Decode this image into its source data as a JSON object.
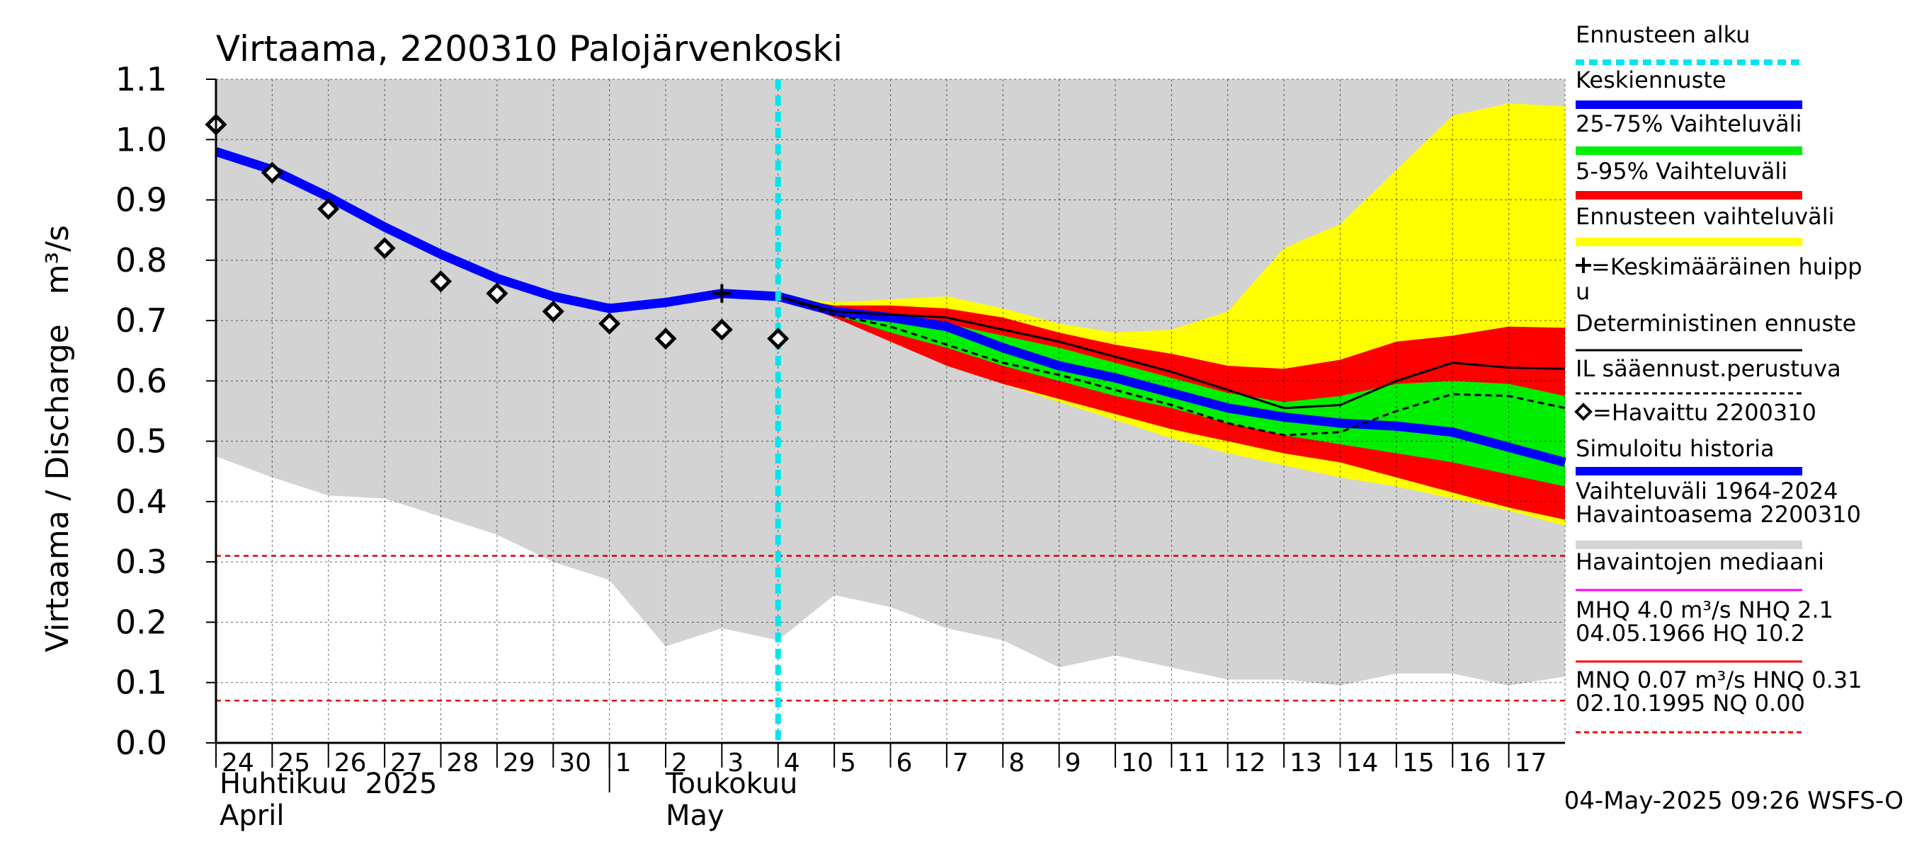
{
  "chart_data": {
    "type": "area",
    "title": "Virtaama, 2200310 Palojärvenkoski",
    "ylabel": "Virtaama / Discharge   m³/s",
    "ylim": [
      0.0,
      1.1
    ],
    "y_ticks": [
      "0.0",
      "0.1",
      "0.2",
      "0.3",
      "0.4",
      "0.5",
      "0.6",
      "0.7",
      "0.8",
      "0.9",
      "1.0",
      "1.1"
    ],
    "x_labels": [
      "24",
      "25",
      "26",
      "27",
      "28",
      "29",
      "30",
      "1",
      "2",
      "3",
      "4",
      "5",
      "6",
      "7",
      "8",
      "9",
      "10",
      "11",
      "12",
      "13",
      "14",
      "15",
      "16",
      "17"
    ],
    "month_labels": [
      {
        "fi": "Huhtikuu  2025",
        "en": "April"
      },
      {
        "fi": "Toukokuu",
        "en": "May"
      }
    ],
    "x_range": [
      "2025-04-24",
      "2025-05-18"
    ],
    "forecast_start": "2025-05-04",
    "history_band": {
      "name": "Vaihteluväli 1964-2024 Havaintoasema 2200310",
      "color": "#d3d3d3",
      "x": [
        "2025-04-24",
        "2025-04-25",
        "2025-04-26",
        "2025-04-27",
        "2025-04-28",
        "2025-04-29",
        "2025-04-30",
        "2025-05-01",
        "2025-05-02",
        "2025-05-03",
        "2025-05-04",
        "2025-05-05",
        "2025-05-06",
        "2025-05-07",
        "2025-05-08",
        "2025-05-09",
        "2025-05-10",
        "2025-05-11",
        "2025-05-12",
        "2025-05-13",
        "2025-05-14",
        "2025-05-15",
        "2025-05-16",
        "2025-05-17",
        "2025-05-18"
      ],
      "low": [
        0.475,
        0.44,
        0.41,
        0.405,
        0.375,
        0.345,
        0.3,
        0.27,
        0.16,
        0.19,
        0.17,
        0.245,
        0.225,
        0.19,
        0.17,
        0.125,
        0.145,
        0.125,
        0.105,
        0.105,
        0.095,
        0.115,
        0.115,
        0.095,
        0.11
      ],
      "high": [
        1.1,
        1.1,
        1.1,
        1.1,
        1.1,
        1.1,
        1.1,
        1.1,
        1.1,
        1.1,
        1.1,
        1.1,
        1.1,
        1.1,
        1.1,
        1.1,
        1.1,
        1.1,
        1.1,
        1.1,
        1.1,
        1.1,
        1.1,
        1.1,
        1.1
      ]
    },
    "forecast_x": [
      "2025-05-04",
      "2025-05-05",
      "2025-05-06",
      "2025-05-07",
      "2025-05-08",
      "2025-05-09",
      "2025-05-10",
      "2025-05-11",
      "2025-05-12",
      "2025-05-13",
      "2025-05-14",
      "2025-05-15",
      "2025-05-16",
      "2025-05-17",
      "2025-05-18"
    ],
    "bands": [
      {
        "name": "Ennusteen vaihteluväli",
        "color": "#ffff00",
        "low": [
          0.74,
          0.71,
          0.675,
          0.635,
          0.595,
          0.565,
          0.535,
          0.505,
          0.48,
          0.46,
          0.44,
          0.425,
          0.405,
          0.385,
          0.36
        ],
        "high": [
          0.74,
          0.73,
          0.735,
          0.74,
          0.72,
          0.695,
          0.68,
          0.685,
          0.715,
          0.82,
          0.86,
          0.95,
          1.04,
          1.06,
          1.055
        ]
      },
      {
        "name": "5-95% Vaihteluväli",
        "color": "#ff0000",
        "low": [
          0.74,
          0.705,
          0.665,
          0.625,
          0.595,
          0.57,
          0.545,
          0.52,
          0.5,
          0.48,
          0.465,
          0.44,
          0.415,
          0.39,
          0.37
        ],
        "high": [
          0.74,
          0.725,
          0.725,
          0.72,
          0.705,
          0.68,
          0.66,
          0.645,
          0.625,
          0.62,
          0.635,
          0.665,
          0.675,
          0.69,
          0.688
        ]
      },
      {
        "name": "25-75% Vaihteluväli",
        "color": "#00ee00",
        "low": [
          0.74,
          0.71,
          0.68,
          0.655,
          0.625,
          0.6,
          0.575,
          0.555,
          0.53,
          0.51,
          0.495,
          0.48,
          0.465,
          0.445,
          0.425
        ],
        "high": [
          0.74,
          0.72,
          0.71,
          0.695,
          0.675,
          0.655,
          0.63,
          0.605,
          0.58,
          0.565,
          0.575,
          0.595,
          0.6,
          0.595,
          0.575
        ]
      }
    ],
    "series": [
      {
        "name": "Keskiennuste",
        "color": "#0000ff",
        "style": "thick",
        "x": [
          "2025-05-04",
          "2025-05-05",
          "2025-05-06",
          "2025-05-07",
          "2025-05-08",
          "2025-05-09",
          "2025-05-10",
          "2025-05-11",
          "2025-05-12",
          "2025-05-13",
          "2025-05-14",
          "2025-05-15",
          "2025-05-16",
          "2025-05-17",
          "2025-05-18"
        ],
        "values": [
          0.74,
          0.715,
          0.705,
          0.69,
          0.655,
          0.625,
          0.605,
          0.58,
          0.555,
          0.54,
          0.53,
          0.525,
          0.515,
          0.49,
          0.465
        ]
      },
      {
        "name": "Deterministinen ennuste",
        "color": "#000000",
        "style": "solid",
        "x": [
          "2025-05-04",
          "2025-05-05",
          "2025-05-06",
          "2025-05-07",
          "2025-05-08",
          "2025-05-09",
          "2025-05-10",
          "2025-05-11",
          "2025-05-12",
          "2025-05-13",
          "2025-05-14",
          "2025-05-15",
          "2025-05-16",
          "2025-05-17",
          "2025-05-18"
        ],
        "values": [
          0.74,
          0.715,
          0.71,
          0.705,
          0.685,
          0.665,
          0.64,
          0.615,
          0.585,
          0.555,
          0.56,
          0.6,
          0.63,
          0.622,
          0.62
        ]
      },
      {
        "name": "IL sääennust.perustuva",
        "color": "#000000",
        "style": "dashed",
        "x": [
          "2025-05-04",
          "2025-05-05",
          "2025-05-06",
          "2025-05-07",
          "2025-05-08",
          "2025-05-09",
          "2025-05-10",
          "2025-05-11",
          "2025-05-12",
          "2025-05-13",
          "2025-05-14",
          "2025-05-15",
          "2025-05-16",
          "2025-05-17",
          "2025-05-18"
        ],
        "values": [
          0.74,
          0.71,
          0.69,
          0.66,
          0.63,
          0.61,
          0.585,
          0.56,
          0.53,
          0.51,
          0.515,
          0.55,
          0.578,
          0.575,
          0.555
        ]
      },
      {
        "name": "Simuloitu historia",
        "color": "#0000ff",
        "style": "thick",
        "x": [
          "2025-04-24",
          "2025-04-25",
          "2025-04-26",
          "2025-04-27",
          "2025-04-28",
          "2025-04-29",
          "2025-04-30",
          "2025-05-01",
          "2025-05-02",
          "2025-05-03",
          "2025-05-04"
        ],
        "values": [
          0.98,
          0.95,
          0.905,
          0.855,
          0.81,
          0.77,
          0.74,
          0.72,
          0.73,
          0.745,
          0.74
        ]
      }
    ],
    "observed": {
      "name": "=Havaittu 2200310",
      "x": [
        "2025-04-24",
        "2025-04-25",
        "2025-04-26",
        "2025-04-27",
        "2025-04-28",
        "2025-04-29",
        "2025-04-30",
        "2025-05-01",
        "2025-05-02",
        "2025-05-03",
        "2025-05-04"
      ],
      "values": [
        1.025,
        0.945,
        0.885,
        0.82,
        0.765,
        0.745,
        0.715,
        0.695,
        0.67,
        0.685,
        0.67
      ]
    },
    "peak_marker": {
      "name": "=Keskimääräinen huippu",
      "x": "2025-05-03",
      "value": 0.745
    },
    "reference_lines": [
      {
        "name": "HNQ",
        "value": 0.31,
        "color": "#dd0000"
      },
      {
        "name": "MNQ",
        "value": 0.07,
        "color": "#dd0000"
      }
    ],
    "legend_position": "right",
    "grid": true
  },
  "legend": {
    "items": [
      {
        "label": "Ennusteen alku",
        "color": "#00e5ee",
        "style": "dashed"
      },
      {
        "label": "Keskiennuste",
        "color": "#0000ff",
        "style": "thick"
      },
      {
        "label": "25-75% Vaihteluväli",
        "color": "#00ee00",
        "style": "thick"
      },
      {
        "label": "5-95% Vaihteluväli",
        "color": "#ff0000",
        "style": "thick"
      },
      {
        "label": "Ennusteen vaihteluväli",
        "color": "#ffff00",
        "style": "thick"
      },
      {
        "label": "=Keskimääräinen huipp",
        "label2": "u",
        "color": "#000000",
        "style": "none",
        "symbol": "plus"
      },
      {
        "label": "Deterministinen ennuste",
        "color": "#000000",
        "style": "solid"
      },
      {
        "label": "IL sääennust.perustuva",
        "color": "#000000",
        "style": "dashed"
      },
      {
        "label": "=Havaittu 2200310",
        "color": "#000000",
        "style": "none",
        "symbol": "diamond"
      },
      {
        "label": "Simuloitu historia",
        "color": "#0000ff",
        "style": "thick"
      },
      {
        "label": "Vaihteluväli 1964-2024",
        "label2": " Havaintoasema 2200310",
        "color": "#d3d3d3",
        "style": "thick"
      },
      {
        "label": "Havaintojen mediaani",
        "color": "#ff00ff",
        "style": "solid"
      },
      {
        "label": "MHQ  4.0 m³/s NHQ  2.1",
        "label2": "04.05.1966 HQ 10.2",
        "color": "#ff0000",
        "style": "solid"
      },
      {
        "label": "MNQ 0.07 m³/s HNQ 0.31",
        "label2": "02.10.1995 NQ 0.00",
        "color": "#ff0000",
        "style": "dashed"
      }
    ]
  },
  "footer": "04-May-2025 09:26 WSFS-O"
}
